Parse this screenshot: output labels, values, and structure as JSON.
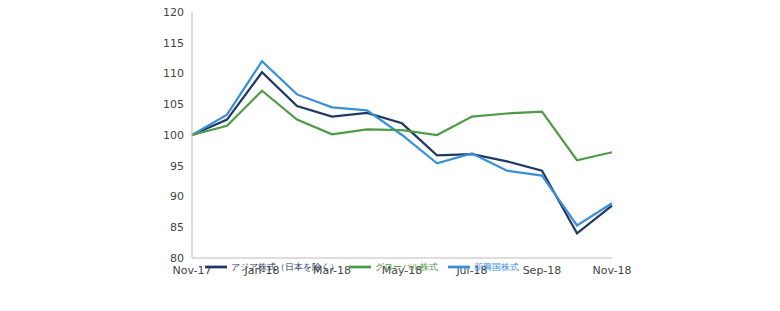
{
  "chart_data": {
    "type": "line",
    "categories": [
      "Nov-17",
      null,
      "Jan-18",
      null,
      "Mar-18",
      null,
      "May-18",
      null,
      "Jul-18",
      null,
      "Sep-18",
      null,
      "Nov-18"
    ],
    "series": [
      {
        "name": "アジア株式（日本を除く）",
        "color": "#1f3864",
        "values": [
          100,
          102.5,
          110.2,
          104.7,
          103,
          103.6,
          101.9,
          96.7,
          96.9,
          95.7,
          94.2,
          84,
          88.5
        ]
      },
      {
        "name": "新興国株式",
        "color": "#3a8fd9",
        "values": [
          100,
          103.3,
          112,
          106.6,
          104.5,
          104,
          100,
          95.4,
          97,
          94.2,
          93.4,
          85.3,
          88.9
        ]
      },
      {
        "name": "グローバル株式",
        "color": "#4e9a47",
        "values": [
          100,
          101.5,
          107.2,
          102.5,
          100.1,
          100.9,
          100.8,
          100,
          103,
          103.5,
          103.8,
          95.9,
          97.2
        ]
      }
    ],
    "ylim": [
      80,
      120
    ],
    "yticks": [
      80,
      85,
      90,
      95,
      100,
      105,
      110,
      115,
      120
    ],
    "grid": false,
    "legend": "bottom-left",
    "marker": "none"
  }
}
